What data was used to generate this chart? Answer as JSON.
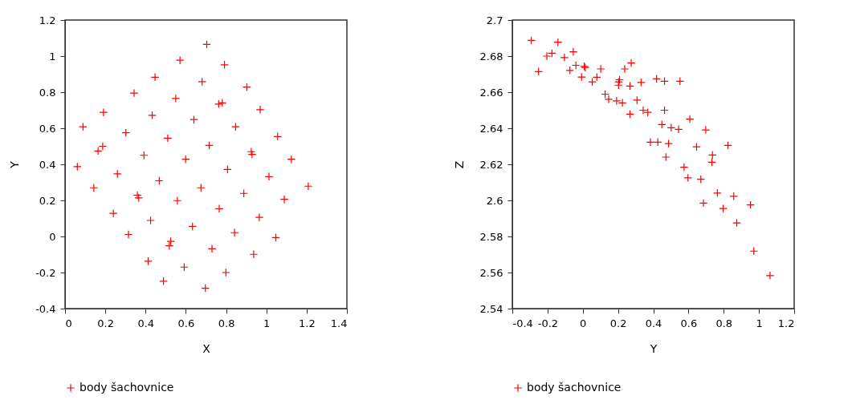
{
  "chart_data": [
    {
      "type": "scatter",
      "xlabel": "X",
      "ylabel": "Y",
      "xlim": [
        0,
        1.4
      ],
      "ylim": [
        -0.4,
        1.2
      ],
      "xticks": [
        0,
        0.2,
        0.4,
        0.6,
        0.8,
        1,
        1.2,
        1.4
      ],
      "yticks": [
        -0.4,
        -0.2,
        0,
        0.2,
        0.4,
        0.6,
        0.8,
        1,
        1.2
      ],
      "legend": "bottom",
      "marker": "cross",
      "grid": false,
      "x": [
        0.704,
        0.571,
        0.792,
        0.447,
        0.681,
        0.903,
        0.343,
        0.55,
        0.763,
        0.781,
        0.969,
        0.191,
        0.433,
        0.64,
        0.847,
        0.089,
        0.302,
        0.51,
        0.716,
        1.056,
        0.164,
        0.187,
        0.392,
        0.599,
        0.925,
        0.929,
        1.124,
        0.061,
        0.26,
        0.807,
        0.468,
        1.013,
        0.143,
        0.675,
        1.208,
        0.359,
        0.366,
        0.888,
        0.558,
        1.089,
        0.766,
        0.24,
        0.425,
        0.965,
        0.633,
        0.315,
        0.842,
        0.525,
        0.518,
        1.047,
        0.73,
        0.937,
        0.413,
        0.592,
        0.799,
        0.489,
        0.697
      ],
      "series": [
        {
          "name": "body šachovnice",
          "color": "#ff0000",
          "values": [
            1.065,
            0.977,
            0.952,
            0.883,
            0.858,
            0.828,
            0.795,
            0.765,
            0.734,
            0.741,
            0.703,
            0.688,
            0.672,
            0.648,
            0.608,
            0.608,
            0.575,
            0.545,
            0.505,
            0.554,
            0.474,
            0.5,
            0.45,
            0.428,
            0.47,
            0.455,
            0.428,
            0.387,
            0.347,
            0.372,
            0.309,
            0.332,
            0.27,
            0.27,
            0.279,
            0.229,
            0.214,
            0.239,
            0.199,
            0.206,
            0.154,
            0.128,
            0.089,
            0.106,
            0.056,
            0.011,
            0.021,
            -0.027,
            -0.052,
            -0.006,
            -0.068,
            -0.099,
            -0.137,
            -0.17,
            -0.2,
            -0.248,
            -0.287
          ]
        }
      ]
    },
    {
      "type": "scatter",
      "xlabel": "Y",
      "ylabel": "Z",
      "xlim": [
        -0.4,
        1.2
      ],
      "ylim": [
        2.54,
        2.7
      ],
      "xticks": [
        -0.4,
        -0.2,
        0,
        0.2,
        0.4,
        0.6,
        0.8,
        1,
        1.2
      ],
      "yticks": [
        2.54,
        2.56,
        2.58,
        2.6,
        2.62,
        2.64,
        2.66,
        2.68,
        2.7
      ],
      "legend": "bottom",
      "marker": "cross",
      "grid": false,
      "x": [
        -0.292,
        -0.141,
        -0.251,
        -0.204,
        -0.175,
        -0.104,
        -0.054,
        -0.073,
        -0.039,
        0.008,
        0.014,
        -0.007,
        0.054,
        0.08,
        0.102,
        0.127,
        0.147,
        0.192,
        0.225,
        0.209,
        0.204,
        0.203,
        0.238,
        0.275,
        0.268,
        0.331,
        0.308,
        0.343,
        0.369,
        0.268,
        0.419,
        0.464,
        0.552,
        0.464,
        0.449,
        0.502,
        0.544,
        0.608,
        0.698,
        0.384,
        0.426,
        0.487,
        0.646,
        0.824,
        0.472,
        0.736,
        0.733,
        0.575,
        0.597,
        0.67,
        0.764,
        0.857,
        0.685,
        0.797,
        0.952,
        0.874,
        0.971,
        1.063
      ],
      "series": [
        {
          "name": "body šachovnice",
          "color": "#ff0000",
          "values": [
            2.6887,
            2.6877,
            2.6714,
            2.68,
            2.6816,
            2.6792,
            2.6824,
            2.6721,
            2.6749,
            2.6743,
            2.6737,
            2.6684,
            2.6657,
            2.6683,
            2.6729,
            2.6589,
            2.6561,
            2.6552,
            2.6541,
            2.6669,
            2.6657,
            2.6639,
            2.6729,
            2.6762,
            2.6634,
            2.6654,
            2.6556,
            2.65,
            2.6488,
            2.6478,
            2.6674,
            2.6661,
            2.6661,
            2.65,
            2.6421,
            2.6403,
            2.6394,
            2.6451,
            2.6391,
            2.6323,
            2.6323,
            2.6315,
            2.6297,
            2.6305,
            2.624,
            2.6252,
            2.6212,
            2.6184,
            2.6125,
            2.6117,
            2.6041,
            2.6023,
            2.5985,
            2.5955,
            2.5975,
            2.5875,
            2.5719,
            2.5583
          ]
        }
      ]
    }
  ]
}
